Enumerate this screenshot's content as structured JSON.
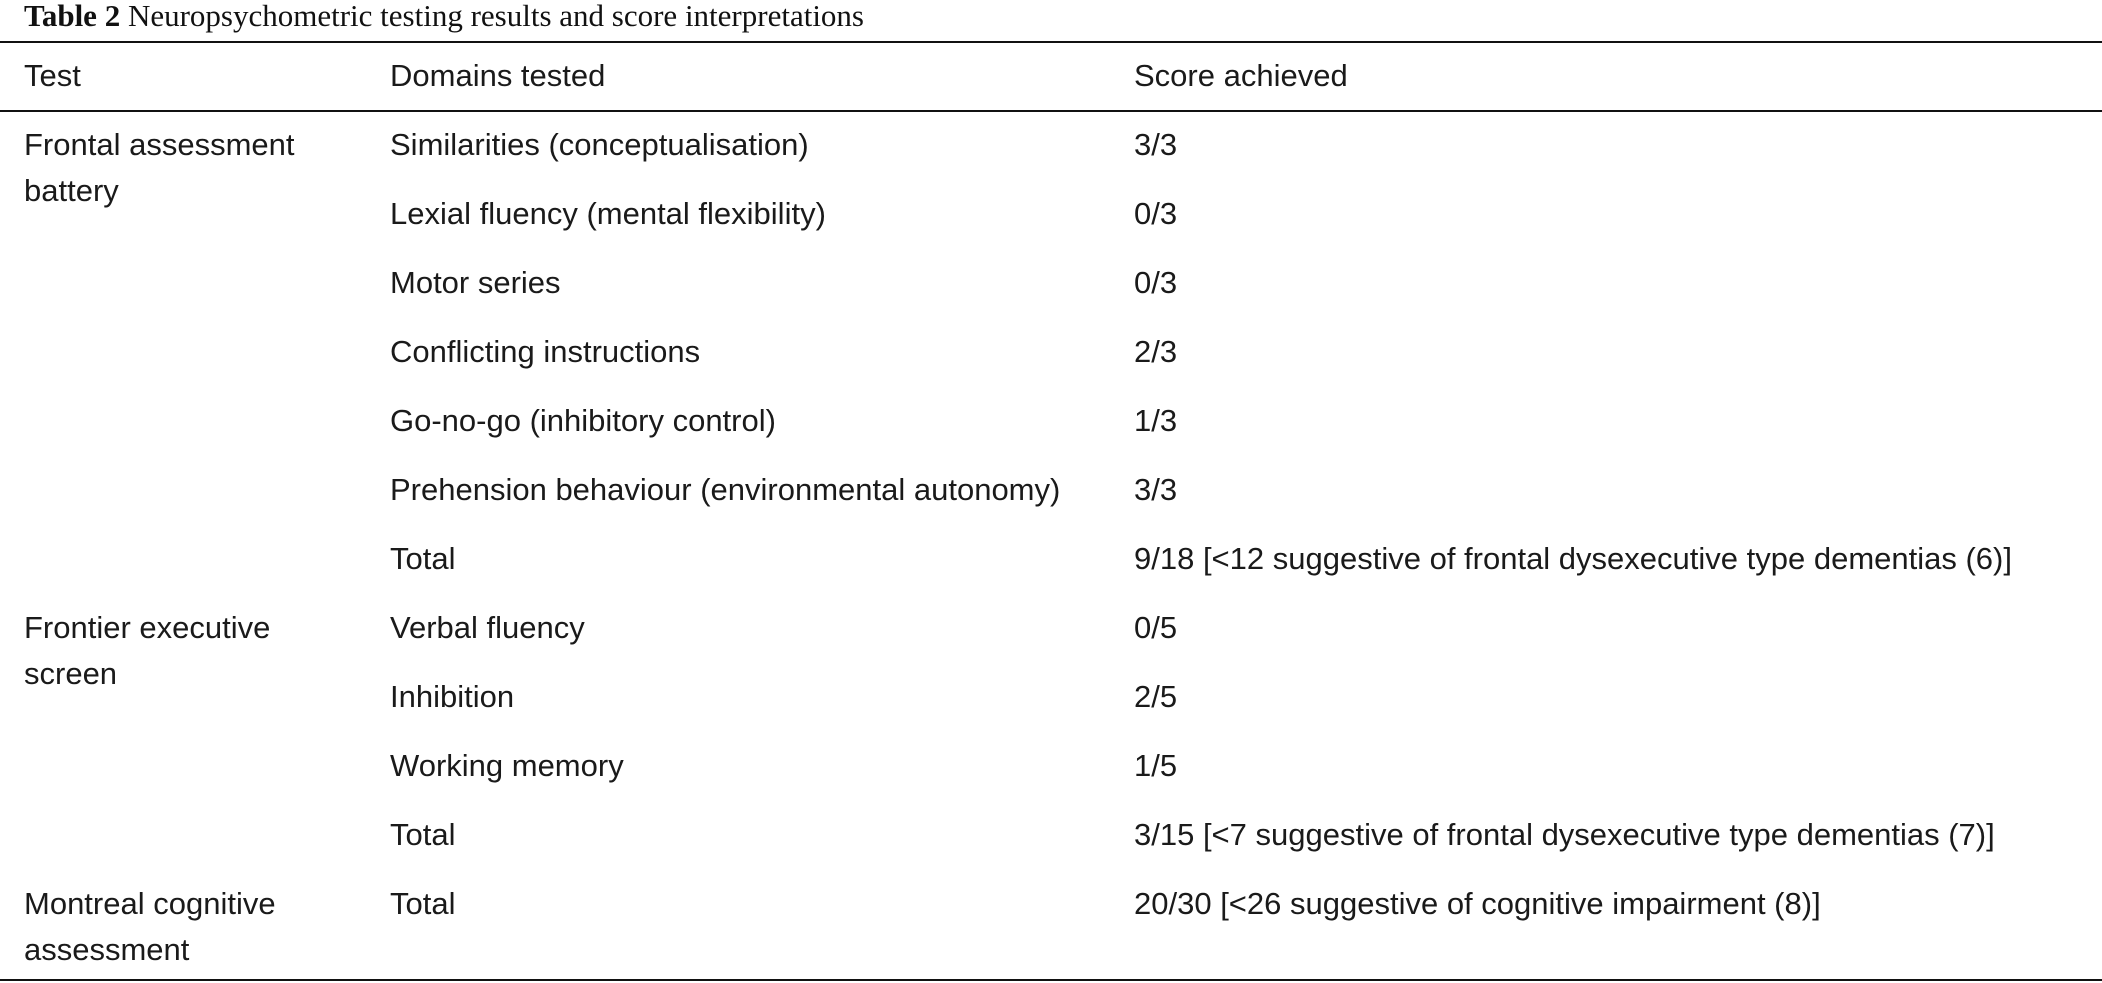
{
  "caption": {
    "label": "Table 2",
    "title": "Neuropsychometric testing results and score interpretations"
  },
  "headers": {
    "test": "Test",
    "domains": "Domains tested",
    "score": "Score achieved"
  },
  "rows": [
    {
      "test_line1": "Frontal assessment",
      "test_line2": "battery",
      "domain": "Similarities (conceptualisation)",
      "score": "3/3"
    },
    {
      "domain": "Lexial fluency (mental flexibility)",
      "score": "0/3"
    },
    {
      "domain": "Motor series",
      "score": "0/3"
    },
    {
      "domain": "Conflicting instructions",
      "score": "2/3"
    },
    {
      "domain": "Go-no-go (inhibitory control)",
      "score": "1/3"
    },
    {
      "domain": "Prehension behaviour (environmental autonomy)",
      "score": "3/3"
    },
    {
      "domain": "Total",
      "score": "9/18 [<12 suggestive of frontal dysexecutive type dementias (6)]"
    },
    {
      "test_line1": "Frontier executive",
      "test_line2": "screen",
      "domain": "Verbal fluency",
      "score": "0/5"
    },
    {
      "domain": "Inhibition",
      "score": "2/5"
    },
    {
      "domain": "Working memory",
      "score": "1/5"
    },
    {
      "domain": "Total",
      "score": "3/15 [<7 suggestive of frontal dysexecutive type dementias (7)]"
    },
    {
      "test_line1": "Montreal cognitive",
      "test_line2": "assessment",
      "domain": "Total",
      "score": "20/30 [<26 suggestive of cognitive impairment (8)]"
    }
  ]
}
